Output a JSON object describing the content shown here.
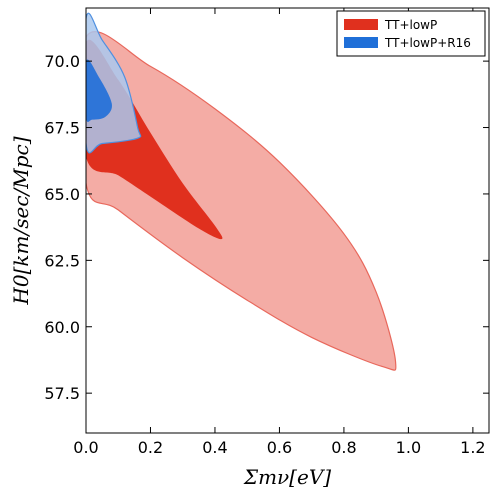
{
  "chart_data": {
    "type": "contour",
    "xlabel": "Σmν[eV]",
    "ylabel": "H0[km/sec/Mpc]",
    "xlim": [
      0,
      1.25
    ],
    "ylim": [
      56,
      72
    ],
    "xticks": [
      "0.0",
      "0.2",
      "0.4",
      "0.6",
      "0.8",
      "1.0",
      "1.2"
    ],
    "yticks": [
      "57.5",
      "60.0",
      "62.5",
      "65.0",
      "67.5",
      "70.0"
    ],
    "grid": false,
    "legend_position": "top-right",
    "series": [
      {
        "name": "TT+lowP",
        "color_inner": "#e0301e",
        "color_outer": "#f4aca5",
        "edge_color": "#e8685c",
        "contour_95": [
          [
            0.0,
            70.9
          ],
          [
            0.2,
            69.8
          ],
          [
            0.4,
            68.2
          ],
          [
            0.6,
            66.2
          ],
          [
            0.8,
            63.5
          ],
          [
            0.9,
            61.3
          ],
          [
            0.96,
            58.7
          ],
          [
            0.92,
            58.5
          ],
          [
            0.7,
            59.6
          ],
          [
            0.5,
            61.0
          ],
          [
            0.3,
            62.6
          ],
          [
            0.1,
            64.4
          ],
          [
            0.0,
            65.4
          ]
        ],
        "contour_68": [
          [
            0.0,
            70.7
          ],
          [
            0.1,
            69.3
          ],
          [
            0.2,
            67.3
          ],
          [
            0.3,
            65.4
          ],
          [
            0.4,
            63.8
          ],
          [
            0.42,
            63.3
          ],
          [
            0.35,
            63.7
          ],
          [
            0.2,
            64.9
          ],
          [
            0.1,
            65.7
          ],
          [
            0.0,
            66.4
          ]
        ]
      },
      {
        "name": "TT+lowP+R16",
        "color_inner": "#1f6fd8",
        "color_outer": "#a9c8ee",
        "edge_color": "#4f90e0",
        "contour_95": [
          [
            0.0,
            71.6
          ],
          [
            0.05,
            70.8
          ],
          [
            0.12,
            69.4
          ],
          [
            0.16,
            67.5
          ],
          [
            0.16,
            67.1
          ],
          [
            0.05,
            66.9
          ],
          [
            0.0,
            66.9
          ]
        ],
        "contour_68": [
          [
            0.0,
            70.0
          ],
          [
            0.04,
            69.4
          ],
          [
            0.08,
            68.4
          ],
          [
            0.06,
            67.9
          ],
          [
            0.02,
            67.8
          ],
          [
            0.0,
            67.9
          ]
        ]
      }
    ]
  }
}
